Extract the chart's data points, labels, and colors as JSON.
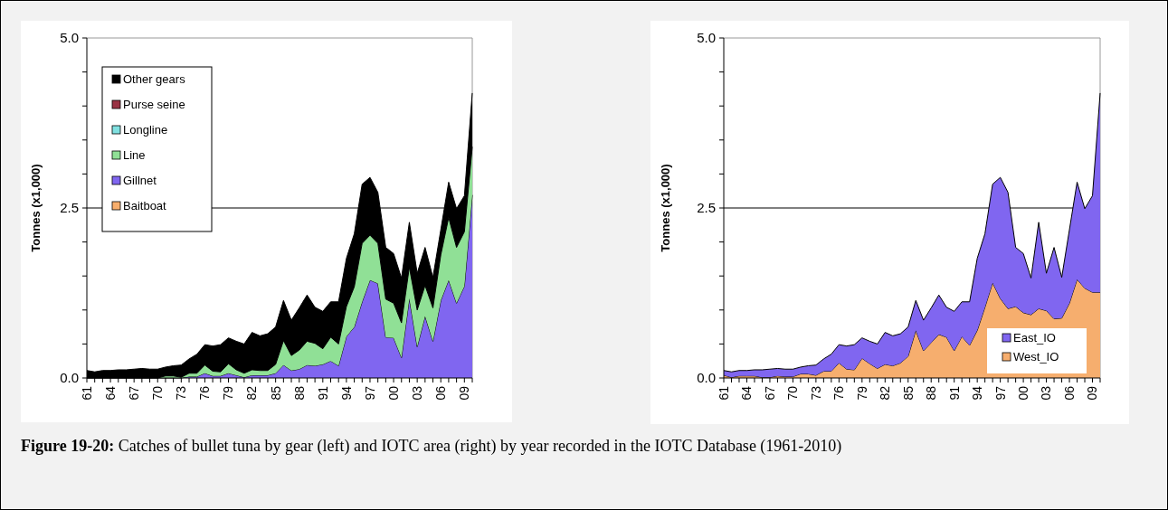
{
  "chart_data": [
    {
      "type": "area",
      "stacked": true,
      "ylabel": "Tonnes (x1,000)",
      "categories": [
        "61",
        null,
        null,
        "64",
        null,
        null,
        "67",
        null,
        null,
        "70",
        null,
        null,
        "73",
        null,
        null,
        "76",
        null,
        null,
        "79",
        null,
        null,
        "82",
        null,
        null,
        "85",
        null,
        null,
        "88",
        null,
        null,
        "91",
        null,
        null,
        "94",
        null,
        null,
        "97",
        null,
        null,
        "00",
        null,
        null,
        "03",
        null,
        null,
        "06",
        null,
        null,
        "09",
        null
      ],
      "ylim": [
        0,
        5
      ],
      "yticks": [
        {
          "value": 0,
          "label": "0.0"
        },
        {
          "value": 0.5,
          "label": null
        },
        {
          "value": 1,
          "label": null
        },
        {
          "value": 1.5,
          "label": null
        },
        {
          "value": 2,
          "label": null
        },
        {
          "value": 2.5,
          "label": "2.5"
        },
        {
          "value": 3,
          "label": null
        },
        {
          "value": 3.5,
          "label": null
        },
        {
          "value": 4,
          "label": null
        },
        {
          "value": 4.5,
          "label": null
        },
        {
          "value": 5,
          "label": "5.0"
        }
      ],
      "grid": "y",
      "legend": "top left",
      "annotations": [
        "Figure 19-20:",
        "Catches of bullet tuna by gear (left) and IOTC area (right) by year recorded in the IOTC Database (1961-2010)"
      ],
      "series": [
        {
          "name": "Baitboat",
          "color": "#f8ae6c",
          "values": [
            null,
            null,
            null,
            null,
            null,
            null,
            null,
            null,
            null,
            null,
            null,
            null,
            null,
            null,
            null,
            null,
            null,
            null,
            null,
            null,
            null,
            null,
            null,
            null,
            null,
            null,
            null,
            null,
            null,
            null,
            null,
            null,
            null,
            null,
            null,
            null,
            null,
            null,
            null,
            null,
            null,
            null,
            null,
            null,
            null,
            null,
            null,
            null,
            null,
            null
          ]
        },
        {
          "name": "Gillnet",
          "color": "#8066f0",
          "values": [
            0,
            0,
            0,
            0,
            0,
            0,
            0,
            0,
            0,
            0,
            0,
            0,
            0,
            0.02,
            0.02,
            0.07,
            0.03,
            0.03,
            0.07,
            0.04,
            0.01,
            0.04,
            0.04,
            0.04,
            0.07,
            0.19,
            0.11,
            0.13,
            0.19,
            0.18,
            0.2,
            0.25,
            0.18,
            0.61,
            0.75,
            1.12,
            1.44,
            1.39,
            0.6,
            0.59,
            0.3,
            1.17,
            0.46,
            0.91,
            0.54,
            1.14,
            1.44,
            1.1,
            1.35,
            2.69
          ]
        },
        {
          "name": "Line",
          "color": "#90e096",
          "values": [
            0,
            0,
            0,
            0,
            0,
            0,
            0,
            0,
            0,
            0,
            0.03,
            0.03,
            0.01,
            0.05,
            0.05,
            0.12,
            0.07,
            0.06,
            0.14,
            0.08,
            0.06,
            0.08,
            0.07,
            0.07,
            0.13,
            0.36,
            0.22,
            0.28,
            0.35,
            0.33,
            0.23,
            0.35,
            0.32,
            0.44,
            0.59,
            0.86,
            0.66,
            0.59,
            0.56,
            0.51,
            0.51,
            0.46,
            0.54,
            0.45,
            0.49,
            0.67,
            0.92,
            0.82,
            0.8,
            0.71
          ]
        },
        {
          "name": "Longline",
          "color": "#80e0e0",
          "values": [
            null,
            null,
            null,
            null,
            null,
            null,
            null,
            null,
            null,
            null,
            null,
            null,
            null,
            null,
            null,
            null,
            null,
            null,
            null,
            null,
            null,
            null,
            null,
            null,
            null,
            null,
            null,
            null,
            null,
            null,
            null,
            null,
            null,
            null,
            null,
            null,
            null,
            null,
            null,
            null,
            null,
            null,
            null,
            null,
            null,
            null,
            null,
            null,
            null,
            null
          ]
        },
        {
          "name": "Purse seine",
          "color": "#993344",
          "values": [
            null,
            null,
            null,
            null,
            null,
            null,
            null,
            null,
            null,
            null,
            null,
            null,
            null,
            null,
            null,
            null,
            null,
            null,
            null,
            null,
            null,
            null,
            null,
            null,
            null,
            null,
            null,
            null,
            null,
            null,
            null,
            null,
            null,
            null,
            null,
            null,
            null,
            null,
            null,
            null,
            null,
            null,
            null,
            null,
            null,
            null,
            null,
            null,
            null,
            null
          ]
        },
        {
          "name": "Other gears",
          "color": "#000000",
          "values": [
            0.11,
            0.09,
            0.11,
            0.11,
            0.12,
            0.12,
            0.13,
            0.14,
            0.13,
            0.13,
            0.13,
            0.15,
            0.18,
            0.21,
            0.28,
            0.3,
            0.37,
            0.4,
            0.38,
            0.42,
            0.43,
            0.55,
            0.51,
            0.54,
            0.55,
            0.59,
            0.52,
            0.62,
            0.68,
            0.53,
            0.55,
            0.52,
            0.62,
            0.71,
            0.78,
            0.87,
            0.85,
            0.75,
            0.76,
            0.73,
            0.66,
            0.66,
            0.54,
            0.56,
            0.45,
            0.37,
            0.52,
            0.57,
            0.53,
            0.79
          ]
        }
      ]
    },
    {
      "type": "area",
      "stacked": true,
      "ylabel": "Tonnes (x1,000)",
      "categories": [
        "61",
        null,
        null,
        "64",
        null,
        null,
        "67",
        null,
        null,
        "70",
        null,
        null,
        "73",
        null,
        null,
        "76",
        null,
        null,
        "79",
        null,
        null,
        "82",
        null,
        null,
        "85",
        null,
        null,
        "88",
        null,
        null,
        "91",
        null,
        null,
        "94",
        null,
        null,
        "97",
        null,
        null,
        "00",
        null,
        null,
        "03",
        null,
        null,
        "06",
        null,
        null,
        "09",
        null
      ],
      "ylim": [
        0,
        5
      ],
      "yticks": [
        {
          "value": 0,
          "label": "0.0"
        },
        {
          "value": 0.5,
          "label": null
        },
        {
          "value": 1,
          "label": null
        },
        {
          "value": 1.5,
          "label": null
        },
        {
          "value": 2,
          "label": null
        },
        {
          "value": 2.5,
          "label": "2.5"
        },
        {
          "value": 3,
          "label": null
        },
        {
          "value": 3.5,
          "label": null
        },
        {
          "value": 4,
          "label": null
        },
        {
          "value": 4.5,
          "label": null
        },
        {
          "value": 5,
          "label": "5.0"
        }
      ],
      "grid": "y",
      "legend": "bottom right",
      "series": [
        {
          "name": "West_IO",
          "color": "#f6ae6e",
          "values": [
            0.04,
            0.01,
            0.03,
            0.03,
            0.03,
            0.01,
            0.01,
            0.03,
            0.02,
            0.02,
            0.06,
            0.06,
            0.04,
            0.1,
            0.1,
            0.22,
            0.13,
            0.12,
            0.29,
            0.21,
            0.14,
            0.2,
            0.18,
            0.22,
            0.32,
            0.7,
            0.4,
            0.52,
            0.64,
            0.6,
            0.4,
            0.61,
            0.48,
            0.7,
            1.04,
            1.4,
            1.17,
            1.02,
            1.05,
            0.96,
            0.93,
            1.02,
            0.99,
            0.87,
            0.88,
            1.1,
            1.45,
            1.32,
            1.26,
            1.26
          ]
        },
        {
          "name": "East_IO",
          "color": "#8066f0",
          "values": [
            0.07,
            0.08,
            0.08,
            0.08,
            0.09,
            0.11,
            0.12,
            0.11,
            0.11,
            0.11,
            0.1,
            0.12,
            0.15,
            0.18,
            0.25,
            0.27,
            0.34,
            0.37,
            0.3,
            0.33,
            0.36,
            0.47,
            0.44,
            0.43,
            0.43,
            0.44,
            0.45,
            0.51,
            0.58,
            0.44,
            0.58,
            0.51,
            0.64,
            1.06,
            1.08,
            1.45,
            1.78,
            1.71,
            0.87,
            0.87,
            0.54,
            1.27,
            0.55,
            1.05,
            0.6,
            1.08,
            1.43,
            1.17,
            1.42,
            2.93
          ]
        }
      ]
    }
  ]
}
